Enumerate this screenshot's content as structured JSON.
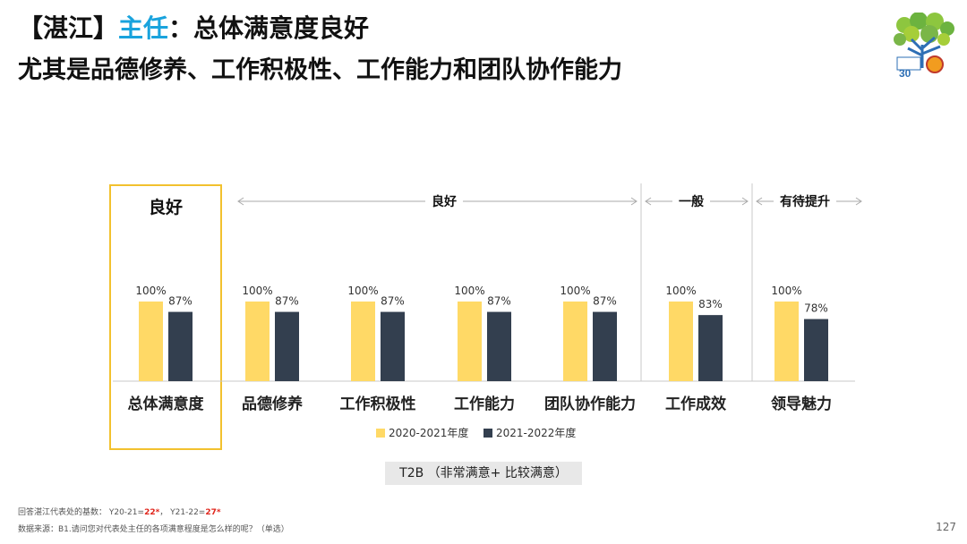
{
  "header": {
    "title_prefix": "【湛江】",
    "title_accent": "主任",
    "title_rest": "：总体满意度良好",
    "subtitle": "尤其是品德修养、工作积极性、工作能力和团队协作能力"
  },
  "colors": {
    "series1": "#ffd966",
    "series2": "#333f4f",
    "highlight": "#f2c12e",
    "accent": "#19a3dd"
  },
  "chart_data": {
    "type": "bar",
    "categories": [
      "总体满意度",
      "品德修养",
      "工作积极性",
      "工作能力",
      "团队协作能力",
      "工作成效",
      "领导魅力"
    ],
    "series": [
      {
        "name": "2020-2021年度",
        "values": [
          100,
          100,
          100,
          100,
          100,
          100,
          100
        ]
      },
      {
        "name": "2021-2022年度",
        "values": [
          87,
          87,
          87,
          87,
          87,
          83,
          78
        ]
      }
    ],
    "ylim": [
      0,
      100
    ],
    "value_suffix": "%",
    "groups": [
      {
        "label": "良好"
      },
      {
        "label": "良好"
      },
      {
        "label": "一般"
      },
      {
        "label": "有待提升"
      }
    ],
    "metric_label": "T2B （非常满意+ 比较满意）"
  },
  "footer": {
    "base_prefix": "回答湛江代表处的基数：  Y20-21=",
    "base_y1": "22*",
    "base_mid": "，  Y21-22=",
    "base_y2": "27*",
    "source": "数据来源：B1.请问您对代表处主任的各项满意程度是怎么样的呢？（单选）",
    "page": "127"
  }
}
